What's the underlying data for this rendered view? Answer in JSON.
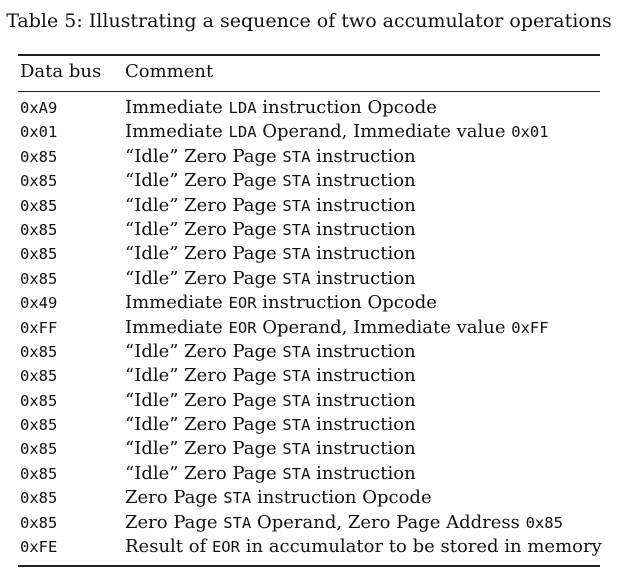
{
  "caption": "Table 5: Illustrating a sequence of two accumulator operations",
  "columns": [
    "Data bus",
    "Comment"
  ],
  "rows": [
    {
      "data_bus": "0xA9",
      "comment": [
        [
          "Immediate ",
          false
        ],
        [
          "LDA",
          true
        ],
        [
          " instruction Opcode",
          false
        ]
      ]
    },
    {
      "data_bus": "0x01",
      "comment": [
        [
          "Immediate ",
          false
        ],
        [
          "LDA",
          true
        ],
        [
          " Operand, Immediate value ",
          false
        ],
        [
          "0x01",
          true
        ]
      ]
    },
    {
      "data_bus": "0x85",
      "comment": [
        [
          "“Idle” Zero Page ",
          false
        ],
        [
          "STA",
          true
        ],
        [
          " instruction",
          false
        ]
      ]
    },
    {
      "data_bus": "0x85",
      "comment": [
        [
          "“Idle” Zero Page ",
          false
        ],
        [
          "STA",
          true
        ],
        [
          " instruction",
          false
        ]
      ]
    },
    {
      "data_bus": "0x85",
      "comment": [
        [
          "“Idle” Zero Page ",
          false
        ],
        [
          "STA",
          true
        ],
        [
          " instruction",
          false
        ]
      ]
    },
    {
      "data_bus": "0x85",
      "comment": [
        [
          "“Idle” Zero Page ",
          false
        ],
        [
          "STA",
          true
        ],
        [
          " instruction",
          false
        ]
      ]
    },
    {
      "data_bus": "0x85",
      "comment": [
        [
          "“Idle” Zero Page ",
          false
        ],
        [
          "STA",
          true
        ],
        [
          " instruction",
          false
        ]
      ]
    },
    {
      "data_bus": "0x85",
      "comment": [
        [
          "“Idle” Zero Page ",
          false
        ],
        [
          "STA",
          true
        ],
        [
          " instruction",
          false
        ]
      ]
    },
    {
      "data_bus": "0x49",
      "comment": [
        [
          "Immediate ",
          false
        ],
        [
          "EOR",
          true
        ],
        [
          " instruction Opcode",
          false
        ]
      ]
    },
    {
      "data_bus": "0xFF",
      "comment": [
        [
          "Immediate ",
          false
        ],
        [
          "EOR",
          true
        ],
        [
          " Operand, Immediate value ",
          false
        ],
        [
          "0xFF",
          true
        ]
      ]
    },
    {
      "data_bus": "0x85",
      "comment": [
        [
          "“Idle” Zero Page ",
          false
        ],
        [
          "STA",
          true
        ],
        [
          " instruction",
          false
        ]
      ]
    },
    {
      "data_bus": "0x85",
      "comment": [
        [
          "“Idle” Zero Page ",
          false
        ],
        [
          "STA",
          true
        ],
        [
          " instruction",
          false
        ]
      ]
    },
    {
      "data_bus": "0x85",
      "comment": [
        [
          "“Idle” Zero Page ",
          false
        ],
        [
          "STA",
          true
        ],
        [
          " instruction",
          false
        ]
      ]
    },
    {
      "data_bus": "0x85",
      "comment": [
        [
          "“Idle” Zero Page ",
          false
        ],
        [
          "STA",
          true
        ],
        [
          " instruction",
          false
        ]
      ]
    },
    {
      "data_bus": "0x85",
      "comment": [
        [
          "“Idle” Zero Page ",
          false
        ],
        [
          "STA",
          true
        ],
        [
          " instruction",
          false
        ]
      ]
    },
    {
      "data_bus": "0x85",
      "comment": [
        [
          "“Idle” Zero Page ",
          false
        ],
        [
          "STA",
          true
        ],
        [
          " instruction",
          false
        ]
      ]
    },
    {
      "data_bus": "0x85",
      "comment": [
        [
          "Zero Page ",
          false
        ],
        [
          "STA",
          true
        ],
        [
          " instruction Opcode",
          false
        ]
      ]
    },
    {
      "data_bus": "0x85",
      "comment": [
        [
          "Zero Page ",
          false
        ],
        [
          "STA",
          true
        ],
        [
          " Operand, Zero Page Address ",
          false
        ],
        [
          "0x85",
          true
        ]
      ]
    },
    {
      "data_bus": "0xFE",
      "comment": [
        [
          "Result of ",
          false
        ],
        [
          "EOR",
          true
        ],
        [
          " in accumulator to be stored in memory",
          false
        ]
      ]
    }
  ]
}
